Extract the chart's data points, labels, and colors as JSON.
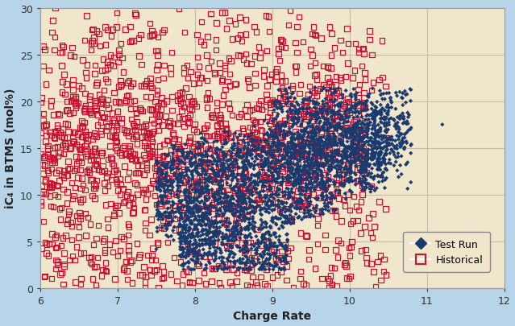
{
  "title": "",
  "xlabel": "Charge Rate",
  "ylabel": "iC₄ in BTMS (mol%)",
  "xlim": [
    6,
    12
  ],
  "ylim": [
    0,
    30
  ],
  "xticks": [
    6,
    7,
    8,
    9,
    10,
    11,
    12
  ],
  "yticks": [
    0,
    5,
    10,
    15,
    20,
    25,
    30
  ],
  "background_color": "#f0e6cc",
  "outer_background": "#b8d4e8",
  "grid_color": "#d0c8b0",
  "test_run_color": "#1a3a6e",
  "historical_color": "#cc1133",
  "isolated_test_x": 11.2,
  "isolated_test_y": 17.5,
  "seed": 12345
}
